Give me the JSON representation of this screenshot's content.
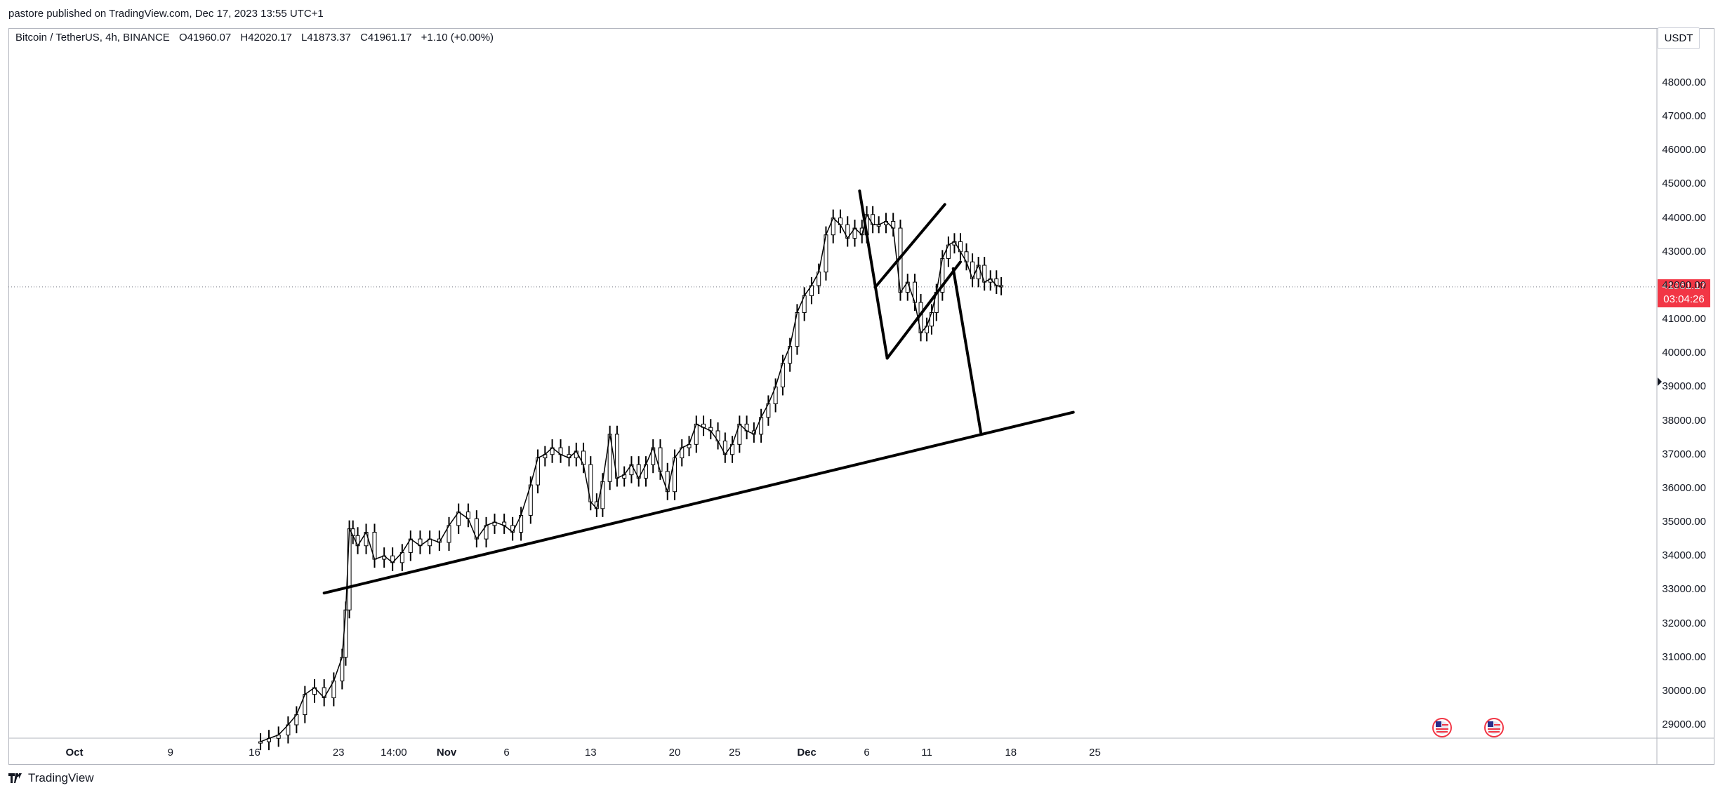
{
  "header": {
    "published": "pastore published on TradingView.com, Dec 17, 2023 13:55 UTC+1"
  },
  "legend": {
    "symbol": "Bitcoin / TetherUS, 4h, BINANCE",
    "open": "O41960.07",
    "high": "H42020.17",
    "low": "L41873.37",
    "close": "C41961.17",
    "change": "+1.10 (+0.00%)"
  },
  "price_axis": {
    "currency": "USDT",
    "last_price": "41961.17",
    "countdown": "03:04:26"
  },
  "footer": {
    "brand": "TradingView"
  },
  "colors": {
    "line": "#000000",
    "badge": "#f23645",
    "grid": "#b2b5be"
  },
  "icons": [
    "us-flag-event-icon",
    "us-flag-event-icon",
    "tradingview-logo-icon",
    "marker-arrow-icon"
  ],
  "chart_data": {
    "type": "line",
    "ylabel": "",
    "xlabel": "",
    "ylim": [
      28600,
      49500
    ],
    "y_ticks": [
      "48000.00",
      "47000.00",
      "46000.00",
      "45000.00",
      "44000.00",
      "43000.00",
      "42000.00",
      "41000.00",
      "40000.00",
      "39000.00",
      "38000.00",
      "37000.00",
      "36000.00",
      "35000.00",
      "34000.00",
      "33000.00",
      "32000.00",
      "31000.00",
      "30000.00",
      "29000.00"
    ],
    "x_ticks": [
      {
        "label": "Oct",
        "bold": true,
        "day": 0
      },
      {
        "label": "9",
        "bold": false,
        "day": 8
      },
      {
        "label": "16",
        "bold": false,
        "day": 15
      },
      {
        "label": "23",
        "bold": false,
        "day": 22
      },
      {
        "label": "14:00",
        "bold": false,
        "day": 26.6
      },
      {
        "label": "Nov",
        "bold": true,
        "day": 31
      },
      {
        "label": "6",
        "bold": false,
        "day": 36
      },
      {
        "label": "13",
        "bold": false,
        "day": 43
      },
      {
        "label": "20",
        "bold": false,
        "day": 50
      },
      {
        "label": "25",
        "bold": false,
        "day": 55
      },
      {
        "label": "Dec",
        "bold": true,
        "day": 61
      },
      {
        "label": "6",
        "bold": false,
        "day": 66
      },
      {
        "label": "11",
        "bold": false,
        "day": 71
      },
      {
        "label": "18",
        "bold": false,
        "day": 78
      },
      {
        "label": "25",
        "bold": false,
        "day": 85
      }
    ],
    "series": [
      {
        "values_x_day": [
          15.5,
          16.2,
          17.0,
          17.8,
          18.5,
          19.2,
          20.0,
          20.8,
          21.6,
          22.3,
          22.6,
          22.9,
          23.2,
          23.6,
          24.3,
          25.0,
          25.8,
          26.5,
          27.3,
          28.0,
          28.8,
          29.6,
          30.4,
          31.2,
          32.0,
          32.8,
          33.5,
          34.3,
          35.0,
          35.8,
          36.5,
          37.2,
          38.0,
          38.6,
          39.2,
          39.8,
          40.5,
          41.2,
          41.8,
          42.4,
          43.0,
          43.5,
          44.0,
          44.6,
          45.2,
          45.8,
          46.4,
          47.0,
          47.6,
          48.2,
          48.8,
          49.4,
          50.0,
          50.6,
          51.2,
          51.8,
          52.4,
          53.0,
          53.6,
          54.2,
          54.8,
          55.4,
          56.0,
          56.6,
          57.2,
          57.8,
          58.4,
          59.0,
          59.6,
          60.2,
          60.8,
          61.4,
          62.0,
          62.6,
          63.2,
          63.8,
          64.4,
          65.0,
          65.6,
          66.0,
          66.5,
          67.0,
          67.6,
          68.2,
          68.8,
          69.4,
          70.0,
          70.5,
          71.0,
          71.4,
          71.8,
          72.3,
          72.8,
          73.3,
          73.8,
          74.3,
          74.8,
          75.3,
          75.8,
          76.3,
          76.8,
          77.2
        ],
        "values": [
          28500,
          28600,
          28700,
          29000,
          29300,
          29900,
          30100,
          29800,
          30300,
          31000,
          32400,
          34800,
          34600,
          34300,
          34700,
          33900,
          34000,
          33800,
          34100,
          34500,
          34300,
          34500,
          34400,
          34900,
          35300,
          35100,
          34500,
          34900,
          35000,
          34900,
          34700,
          35200,
          36100,
          36900,
          37000,
          37200,
          37000,
          36900,
          37100,
          36700,
          35600,
          35400,
          36200,
          37600,
          36300,
          36400,
          36700,
          36300,
          36700,
          37200,
          36500,
          35900,
          36900,
          37200,
          37300,
          37900,
          37800,
          37700,
          37400,
          37000,
          37300,
          37900,
          37700,
          37600,
          38100,
          38500,
          39000,
          39700,
          40200,
          41200,
          41700,
          42000,
          42400,
          43500,
          44000,
          43800,
          43400,
          43700,
          43500,
          44100,
          43800,
          43800,
          43900,
          43700,
          41800,
          42100,
          41500,
          40600,
          40800,
          41200,
          41800,
          42800,
          43200,
          43300,
          43000,
          42700,
          42200,
          42600,
          42100,
          42200,
          42000,
          41961
        ]
      }
    ],
    "drawings": [
      {
        "name": "support-trendline",
        "from": {
          "day": 20.8,
          "price": 32900
        },
        "to": {
          "day": 83.2,
          "price": 38250
        }
      },
      {
        "name": "pole-line",
        "from": {
          "day": 65.4,
          "price": 44800
        },
        "to": {
          "day": 67.7,
          "price": 39850
        }
      },
      {
        "name": "channel-upper",
        "from": {
          "day": 66.7,
          "price": 41950
        },
        "to": {
          "day": 72.5,
          "price": 44400
        }
      },
      {
        "name": "channel-lower",
        "from": {
          "day": 67.7,
          "price": 39850
        },
        "to": {
          "day": 73.8,
          "price": 42700
        }
      },
      {
        "name": "projection-down",
        "from": {
          "day": 73.2,
          "price": 42500
        },
        "to": {
          "day": 75.5,
          "price": 37650
        }
      }
    ]
  }
}
